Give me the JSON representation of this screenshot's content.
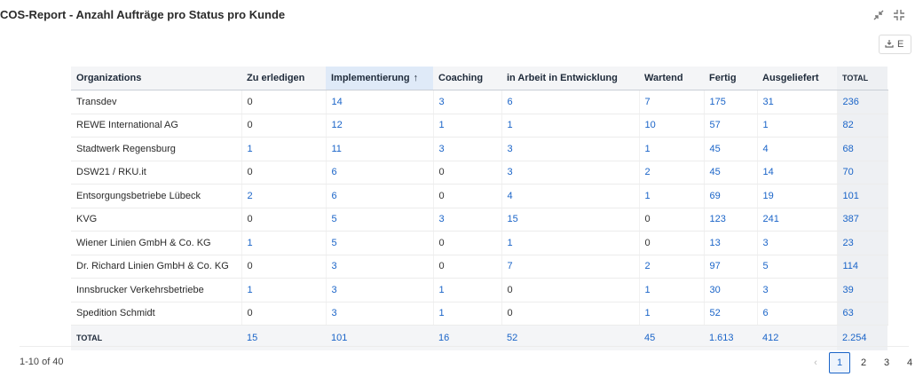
{
  "header": {
    "title": "COS-Report - Anzahl Aufträge pro Status pro Kunde",
    "export_label": "E"
  },
  "table": {
    "columns": [
      "Organizations",
      "Zu erledigen",
      "Implementierung",
      "Coaching",
      "in Arbeit in Entwicklung",
      "Wartend",
      "Fertig",
      "Ausgeliefert",
      "TOTAL"
    ],
    "sort_arrow": "↑",
    "rows": [
      [
        "Transdev",
        "0",
        "14",
        "3",
        "6",
        "7",
        "175",
        "31",
        "236"
      ],
      [
        "REWE International AG",
        "0",
        "12",
        "1",
        "1",
        "10",
        "57",
        "1",
        "82"
      ],
      [
        "Stadtwerk Regensburg",
        "1",
        "11",
        "3",
        "3",
        "1",
        "45",
        "4",
        "68"
      ],
      [
        "DSW21 / RKU.it",
        "0",
        "6",
        "0",
        "3",
        "2",
        "45",
        "14",
        "70"
      ],
      [
        "Entsorgungsbetriebe Lübeck",
        "2",
        "6",
        "0",
        "4",
        "1",
        "69",
        "19",
        "101"
      ],
      [
        "KVG",
        "0",
        "5",
        "3",
        "15",
        "0",
        "123",
        "241",
        "387"
      ],
      [
        "Wiener Linien GmbH & Co. KG",
        "1",
        "5",
        "0",
        "1",
        "0",
        "13",
        "3",
        "23"
      ],
      [
        "Dr. Richard Linien GmbH & Co. KG",
        "0",
        "3",
        "0",
        "7",
        "2",
        "97",
        "5",
        "114"
      ],
      [
        "Innsbrucker Verkehrsbetriebe",
        "1",
        "3",
        "1",
        "0",
        "1",
        "30",
        "3",
        "39"
      ],
      [
        "Spedition Schmidt",
        "0",
        "3",
        "1",
        "0",
        "1",
        "52",
        "6",
        "63"
      ]
    ],
    "totals": [
      "TOTAL",
      "15",
      "101",
      "16",
      "52",
      "45",
      "1.613",
      "412",
      "2.254"
    ]
  },
  "pagination": {
    "range_text": "1-10 of 40",
    "prev_symbol": "‹",
    "pages": [
      "1",
      "2",
      "3",
      "4"
    ]
  },
  "colors": {
    "link": "#1a64c8",
    "sorted_header": "#dfeaf8"
  }
}
